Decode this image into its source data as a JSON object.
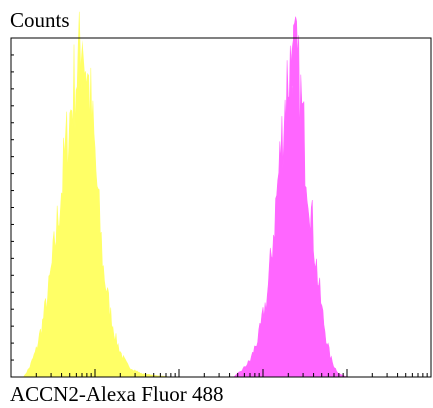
{
  "chart_data": {
    "type": "area",
    "title": "",
    "ylabel": "Counts",
    "xlabel": "ACCN2-Alexa Fluor 488",
    "grid": false,
    "legend": "none",
    "x_scale": "log",
    "series": [
      {
        "color": "#ffff66",
        "x": [
          0.03,
          0.045,
          0.06,
          0.075,
          0.09,
          0.105,
          0.12,
          0.135,
          0.15,
          0.16,
          0.17,
          0.18,
          0.19,
          0.2,
          0.21,
          0.22,
          0.235,
          0.25,
          0.265,
          0.28,
          0.295,
          0.31,
          0.34,
          0.38
        ],
        "values": [
          0,
          3,
          8,
          16,
          26,
          40,
          56,
          72,
          86,
          93,
          97,
          92,
          80,
          65,
          48,
          32,
          20,
          11,
          6,
          3,
          2,
          1,
          0.5,
          0
        ]
      },
      {
        "color": "#ff66ff",
        "x": [
          0.53,
          0.55,
          0.57,
          0.59,
          0.61,
          0.62,
          0.63,
          0.64,
          0.65,
          0.66,
          0.67,
          0.68,
          0.69,
          0.7,
          0.71,
          0.72,
          0.73,
          0.74,
          0.75,
          0.76,
          0.77,
          0.78,
          0.79,
          0.8
        ],
        "values": [
          0,
          2,
          5,
          12,
          24,
          36,
          50,
          64,
          78,
          90,
          96,
          92,
          82,
          68,
          55,
          42,
          30,
          20,
          12,
          6,
          3,
          1,
          0.5,
          0
        ]
      }
    ]
  }
}
